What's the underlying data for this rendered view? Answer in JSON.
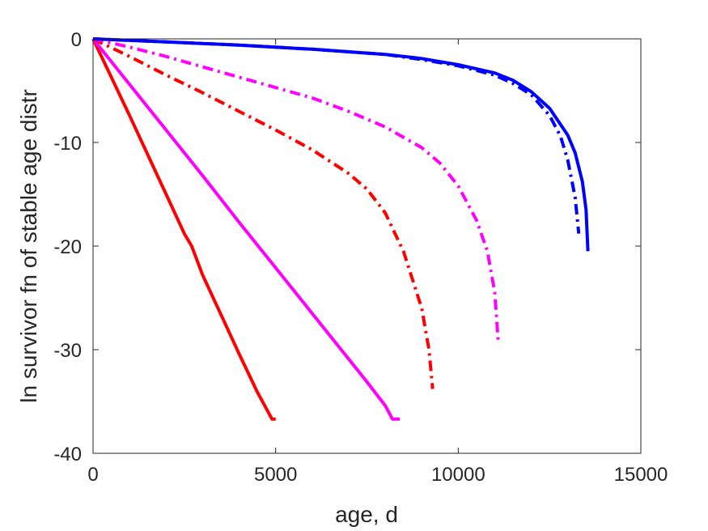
{
  "chart_data": {
    "type": "line",
    "title": "",
    "xlabel": "age, d",
    "ylabel": "ln survivor fn of stable age distr",
    "xlim": [
      0,
      15000
    ],
    "ylim": [
      -40,
      0
    ],
    "xticks": [
      0,
      5000,
      10000,
      15000
    ],
    "yticks": [
      0,
      -10,
      -20,
      -30,
      -40
    ],
    "xtick_labels": [
      "0",
      "5000",
      "10000",
      "15000"
    ],
    "ytick_labels": [
      "0",
      "-10",
      "-20",
      "-30",
      "-40"
    ],
    "grid": false,
    "legend": "none",
    "series": [
      {
        "color": "#ff0000",
        "style": "solid",
        "x": [
          0,
          500,
          1000,
          1500,
          2000,
          2500,
          2700,
          3000,
          3500,
          4000,
          4500,
          4900,
          5000
        ],
        "y": [
          0,
          -3.7,
          -7.4,
          -11.2,
          -15.0,
          -18.8,
          -20.0,
          -22.8,
          -26.6,
          -30.4,
          -34.1,
          -36.7,
          -36.7
        ]
      },
      {
        "color": "#ff00ff",
        "style": "solid",
        "x": [
          0,
          1000,
          2000,
          3000,
          4000,
          5000,
          6000,
          7000,
          7500,
          8000,
          8200,
          8400
        ],
        "y": [
          0,
          -4.4,
          -8.8,
          -13.2,
          -17.7,
          -22.1,
          -26.5,
          -30.9,
          -33.1,
          -35.4,
          -36.7,
          -36.7
        ]
      },
      {
        "color": "#ff0000",
        "style": "dashdot",
        "x": [
          0,
          1000,
          2000,
          3000,
          4000,
          5000,
          6000,
          7000,
          7500,
          8000,
          8500,
          9000,
          9200,
          9300
        ],
        "y": [
          0,
          -1.7,
          -3.5,
          -5.2,
          -7.0,
          -8.8,
          -10.7,
          -13.0,
          -14.5,
          -16.8,
          -20.5,
          -26.0,
          -30.0,
          -33.8
        ]
      },
      {
        "color": "#ff00ff",
        "style": "dashdot",
        "x": [
          0,
          1000,
          2000,
          3000,
          4000,
          5000,
          6000,
          7000,
          8000,
          8500,
          9000,
          9500,
          10000,
          10500,
          10800,
          11000,
          11100
        ],
        "y": [
          0,
          -0.8,
          -1.7,
          -2.7,
          -3.7,
          -4.7,
          -5.7,
          -7.0,
          -8.5,
          -9.5,
          -10.5,
          -12.0,
          -14.2,
          -17.5,
          -20.5,
          -24.5,
          -29.5
        ]
      },
      {
        "color": "#0000ff",
        "style": "dashdot",
        "x": [
          0,
          2000,
          4000,
          6000,
          8000,
          9000,
          10000,
          11000,
          11500,
          12000,
          12500,
          12800,
          13000,
          13200,
          13300
        ],
        "y": [
          0,
          -0.3,
          -0.6,
          -1.0,
          -1.5,
          -2.0,
          -2.6,
          -3.5,
          -4.3,
          -5.4,
          -7.4,
          -9.4,
          -11.7,
          -15.3,
          -18.8
        ]
      },
      {
        "color": "#0000ff",
        "style": "solid",
        "x": [
          0,
          2000,
          4000,
          6000,
          8000,
          9000,
          10000,
          11000,
          11500,
          12000,
          12500,
          13000,
          13200,
          13400,
          13500,
          13550
        ],
        "y": [
          0,
          -0.3,
          -0.6,
          -1.0,
          -1.5,
          -1.9,
          -2.5,
          -3.3,
          -4.0,
          -5.1,
          -6.7,
          -9.3,
          -11.0,
          -13.8,
          -16.5,
          -20.5
        ]
      }
    ]
  }
}
